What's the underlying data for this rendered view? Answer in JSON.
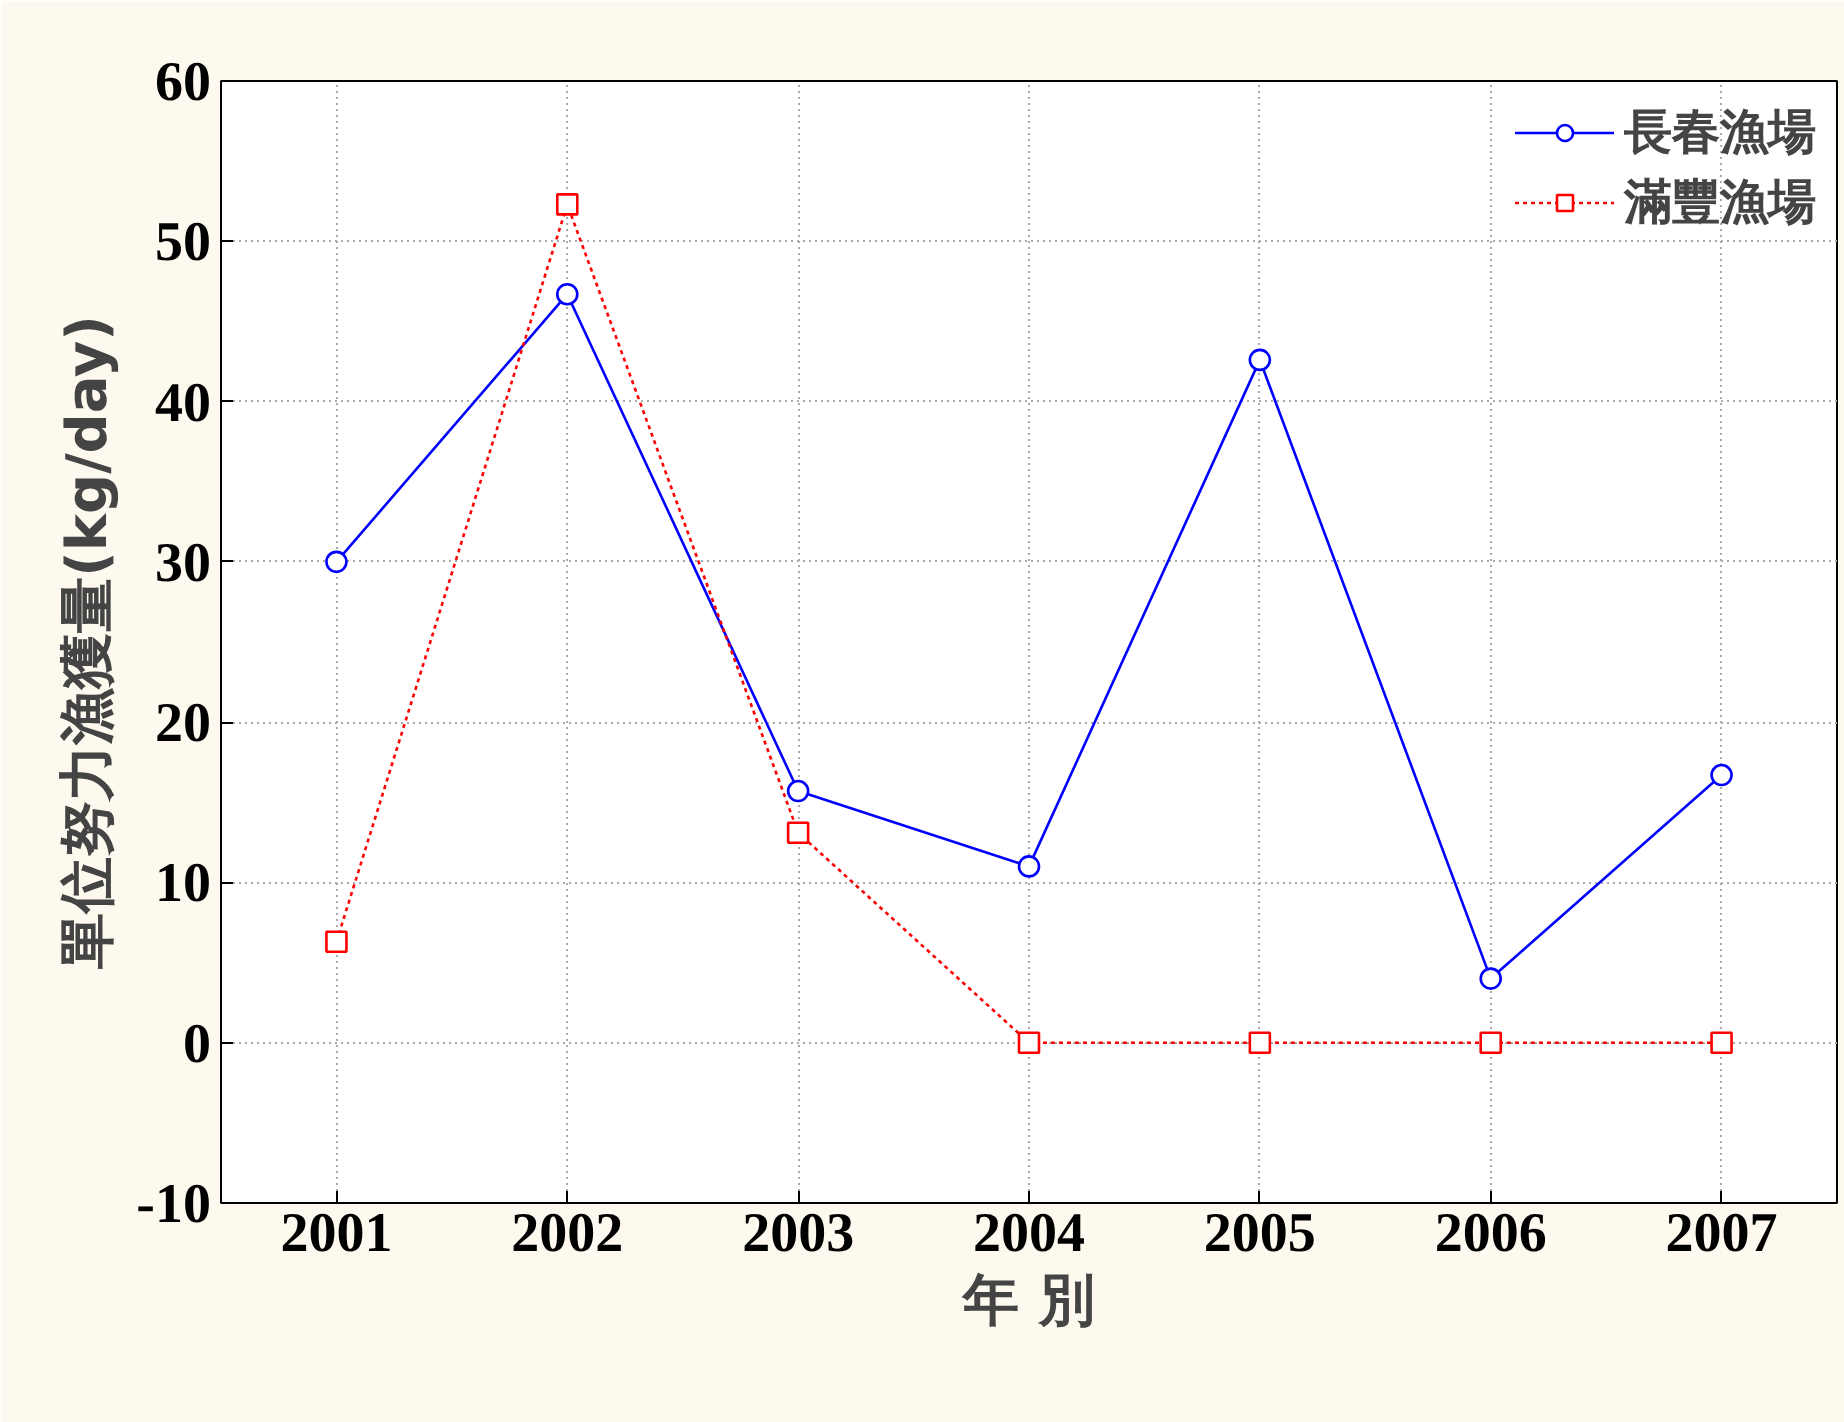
{
  "chart_data": {
    "type": "line",
    "xlabel": "年 別",
    "ylabel": "單位努力漁獲量(kg/day)",
    "x": [
      2001,
      2002,
      2003,
      2004,
      2005,
      2006,
      2007
    ],
    "xlim": [
      2000.5,
      2007.5
    ],
    "xticks": [
      2001,
      2002,
      2003,
      2004,
      2005,
      2006,
      2007
    ],
    "ylim": [
      -10,
      60
    ],
    "yticks": [
      -10,
      0,
      10,
      20,
      30,
      40,
      50,
      60
    ],
    "grid": true,
    "legend": "top right",
    "series": [
      {
        "name": "長春漁場",
        "color": "#0000ff",
        "marker": "circle",
        "line_style": "solid",
        "values": [
          30,
          46.7,
          15.7,
          11,
          42.6,
          4,
          16.7
        ]
      },
      {
        "name": "滿豐漁場",
        "color": "#ff0000",
        "marker": "square",
        "line_style": "dotted",
        "values": [
          6.3,
          52.3,
          13.1,
          0,
          0,
          0,
          0
        ]
      }
    ]
  }
}
